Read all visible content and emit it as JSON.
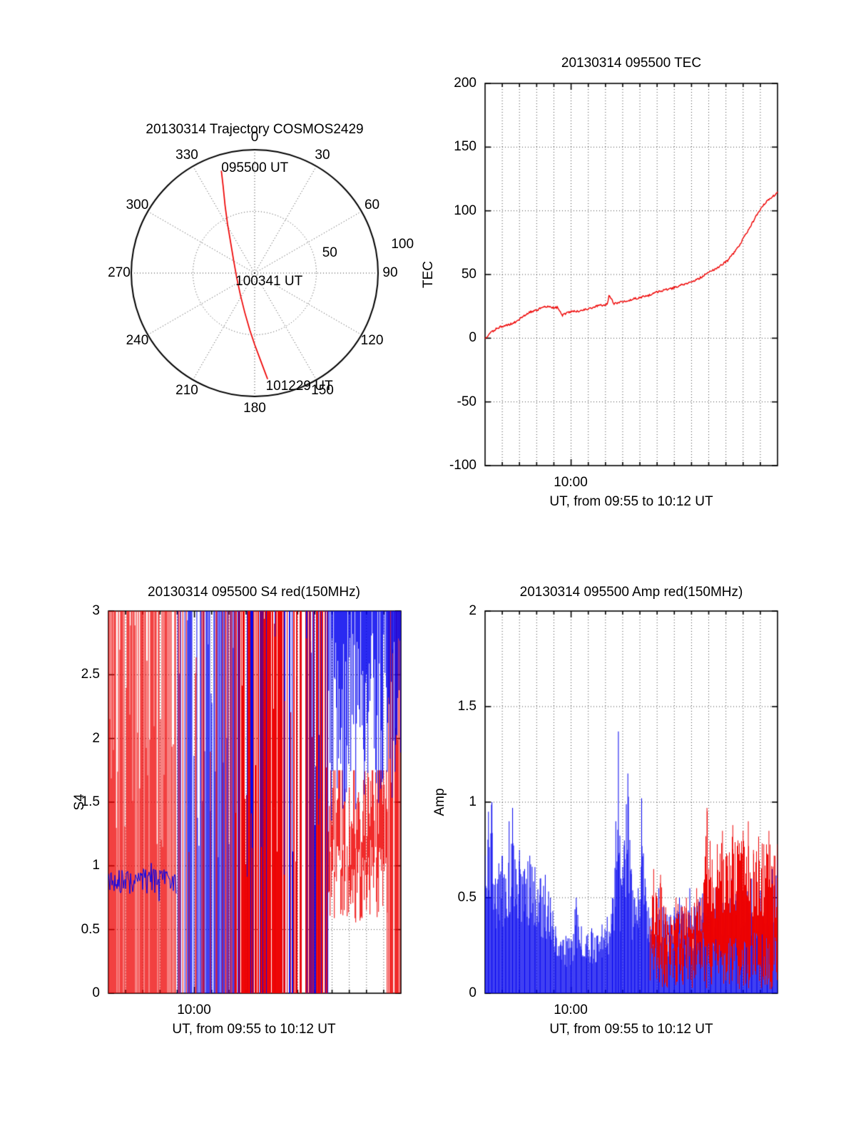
{
  "colors": {
    "red": "#ee0000",
    "blue": "#0000ee",
    "axis": "#000000"
  },
  "seed": 20130314,
  "chart_data": [
    {
      "type": "polar",
      "title": "20130314 Trajectory COSMOS2429",
      "azimuth_ticks": [
        "0",
        "30",
        "60",
        "90",
        "120",
        "150",
        "180",
        "210",
        "240",
        "270",
        "300",
        "330"
      ],
      "radial_tick_labels": [
        "50",
        "100"
      ],
      "annotations": [
        {
          "label": "095500 UT",
          "x": -0.27,
          "y": -0.85
        },
        {
          "label": "100341 UT",
          "x": -0.155,
          "y": 0.07
        },
        {
          "label": "101229 UT",
          "x": 0.09,
          "y": 0.92
        }
      ],
      "track_color": "red",
      "track_xy": [
        [
          -0.27,
          -0.83
        ],
        [
          -0.255,
          -0.7
        ],
        [
          -0.24,
          -0.55
        ],
        [
          -0.22,
          -0.4
        ],
        [
          -0.195,
          -0.25
        ],
        [
          -0.17,
          -0.1
        ],
        [
          -0.145,
          0.04
        ],
        [
          -0.115,
          0.18
        ],
        [
          -0.08,
          0.32
        ],
        [
          -0.04,
          0.46
        ],
        [
          0.0,
          0.58
        ],
        [
          0.045,
          0.7
        ],
        [
          0.09,
          0.82
        ],
        [
          0.105,
          0.86
        ]
      ]
    },
    {
      "type": "line",
      "title": "20130314 095500 TEC",
      "ylabel": "TEC",
      "xlabel": "UT, from 09:55 to 10:12 UT",
      "xtick_label": "10:00",
      "xtick_minute": 5,
      "xlim_minutes": [
        0,
        17
      ],
      "ylim": [
        -100,
        200
      ],
      "yticks": [
        -100,
        -50,
        0,
        50,
        100,
        150,
        200
      ],
      "series": {
        "name": "TEC",
        "color": "red",
        "points": [
          [
            0,
            0
          ],
          [
            0.3,
            4
          ],
          [
            0.6,
            7
          ],
          [
            0.9,
            9
          ],
          [
            1.2,
            10
          ],
          [
            1.5,
            11
          ],
          [
            1.8,
            13
          ],
          [
            2.1,
            16
          ],
          [
            2.4,
            19
          ],
          [
            2.7,
            21
          ],
          [
            3.0,
            22
          ],
          [
            3.3,
            24
          ],
          [
            3.6,
            25
          ],
          [
            3.9,
            24
          ],
          [
            4.2,
            24
          ],
          [
            4.5,
            18
          ],
          [
            4.8,
            20
          ],
          [
            5.1,
            21
          ],
          [
            5.4,
            21
          ],
          [
            5.7,
            22
          ],
          [
            6.0,
            23
          ],
          [
            6.3,
            24
          ],
          [
            6.6,
            26
          ],
          [
            6.9,
            26
          ],
          [
            7.1,
            27
          ],
          [
            7.2,
            33
          ],
          [
            7.35,
            31
          ],
          [
            7.5,
            27
          ],
          [
            7.8,
            28
          ],
          [
            8.1,
            29
          ],
          [
            8.4,
            30
          ],
          [
            8.7,
            31
          ],
          [
            9.0,
            32
          ],
          [
            9.3,
            33
          ],
          [
            9.6,
            34
          ],
          [
            9.9,
            36
          ],
          [
            10.2,
            37
          ],
          [
            10.5,
            38
          ],
          [
            10.8,
            39
          ],
          [
            11.1,
            40
          ],
          [
            11.4,
            42
          ],
          [
            11.7,
            43
          ],
          [
            12.0,
            44
          ],
          [
            12.3,
            46
          ],
          [
            12.6,
            48
          ],
          [
            12.9,
            51
          ],
          [
            13.2,
            53
          ],
          [
            13.5,
            55
          ],
          [
            13.8,
            58
          ],
          [
            14.1,
            61
          ],
          [
            14.4,
            66
          ],
          [
            14.7,
            71
          ],
          [
            15.0,
            78
          ],
          [
            15.3,
            85
          ],
          [
            15.6,
            92
          ],
          [
            15.9,
            99
          ],
          [
            16.2,
            105
          ],
          [
            16.5,
            109
          ],
          [
            16.8,
            112
          ],
          [
            17,
            115
          ]
        ]
      }
    },
    {
      "type": "scatter-noise",
      "title": "20130314 095500 S4 red(150MHz)",
      "ylabel": "S4",
      "xlabel": "UT, from 09:55 to 10:12 UT",
      "xtick_label": "10:00",
      "xtick_minute": 5,
      "xlim_minutes": [
        0,
        17
      ],
      "ylim": [
        0,
        3
      ],
      "yticks": [
        0,
        0.5,
        1,
        1.5,
        2,
        2.5,
        3
      ],
      "red_segments": [
        {
          "t0": 0,
          "t1": 3.95,
          "mode": "full",
          "density": 0.78
        },
        {
          "t0": 3.95,
          "t1": 4.6,
          "mode": "full",
          "density": 0.25
        },
        {
          "t0": 4.6,
          "t1": 7.4,
          "mode": "full",
          "density": 0.22
        },
        {
          "t0": 7.4,
          "t1": 10.1,
          "mode": "full",
          "density": 0.65
        },
        {
          "t0": 10.1,
          "t1": 12.8,
          "mode": "full",
          "density": 0.45
        },
        {
          "t0": 12.8,
          "t1": 16.2,
          "mode": "band",
          "lo": 0.55,
          "hi": 1.75,
          "density": 0.95
        },
        {
          "t0": 16.2,
          "t1": 17,
          "mode": "full",
          "density": 0.7
        }
      ],
      "blue_segments": [
        {
          "t0": 0,
          "t1": 3.95,
          "mode": "line",
          "center": 0.88,
          "jitter": 0.1
        },
        {
          "t0": 3.95,
          "t1": 4.6,
          "mode": "full",
          "density": 0.3
        },
        {
          "t0": 4.6,
          "t1": 7.4,
          "mode": "full",
          "density": 0.8
        },
        {
          "t0": 7.4,
          "t1": 10.1,
          "mode": "full",
          "density": 0.4
        },
        {
          "t0": 10.1,
          "t1": 12.8,
          "mode": "full",
          "density": 0.45
        },
        {
          "t0": 12.8,
          "t1": 17,
          "mode": "top",
          "lo": 1.35,
          "density": 0.85
        }
      ]
    },
    {
      "type": "scatter-noise",
      "title": "20130314 095500 Amp red(150MHz)",
      "ylabel": "Amp",
      "xlabel": "UT, from 09:55 to 10:12 UT",
      "xtick_label": "10:00",
      "xtick_minute": 5,
      "xlim_minutes": [
        0,
        17
      ],
      "ylim": [
        0,
        2
      ],
      "yticks": [
        0,
        0.5,
        1,
        1.5,
        2
      ],
      "blue_envelope": [
        [
          0,
          0.72
        ],
        [
          0.2,
          0.95
        ],
        [
          0.4,
          1.0
        ],
        [
          0.6,
          0.6
        ],
        [
          0.8,
          0.68
        ],
        [
          1.0,
          0.72
        ],
        [
          1.2,
          0.6
        ],
        [
          1.4,
          0.9
        ],
        [
          1.6,
          0.97
        ],
        [
          1.8,
          0.65
        ],
        [
          2.0,
          0.75
        ],
        [
          2.3,
          0.65
        ],
        [
          2.6,
          0.72
        ],
        [
          2.9,
          0.66
        ],
        [
          3.2,
          0.6
        ],
        [
          3.5,
          0.62
        ],
        [
          3.8,
          0.5
        ],
        [
          4.1,
          0.35
        ],
        [
          4.4,
          0.27
        ],
        [
          4.7,
          0.3
        ],
        [
          5.0,
          0.28
        ],
        [
          5.3,
          0.5
        ],
        [
          5.6,
          0.35
        ],
        [
          5.9,
          0.3
        ],
        [
          6.2,
          0.34
        ],
        [
          6.5,
          0.3
        ],
        [
          6.8,
          0.36
        ],
        [
          7.1,
          0.4
        ],
        [
          7.4,
          0.5
        ],
        [
          7.6,
          0.9
        ],
        [
          7.75,
          1.37
        ],
        [
          7.9,
          0.6
        ],
        [
          8.1,
          0.8
        ],
        [
          8.3,
          1.15
        ],
        [
          8.5,
          0.65
        ],
        [
          8.7,
          0.5
        ],
        [
          8.9,
          0.55
        ],
        [
          9.1,
          1.02
        ],
        [
          9.3,
          0.6
        ],
        [
          9.5,
          0.45
        ],
        [
          9.8,
          0.5
        ],
        [
          10.1,
          0.55
        ],
        [
          10.4,
          0.45
        ],
        [
          10.7,
          0.4
        ],
        [
          11.0,
          0.45
        ],
        [
          11.3,
          0.5
        ],
        [
          11.6,
          0.42
        ],
        [
          11.9,
          0.55
        ],
        [
          12.2,
          0.45
        ],
        [
          12.5,
          0.5
        ],
        [
          12.8,
          0.55
        ],
        [
          13.1,
          0.5
        ],
        [
          13.4,
          0.55
        ],
        [
          13.7,
          0.5
        ],
        [
          14.0,
          0.55
        ],
        [
          14.3,
          0.6
        ],
        [
          14.6,
          0.52
        ],
        [
          14.9,
          0.58
        ],
        [
          15.2,
          0.55
        ],
        [
          15.5,
          0.6
        ],
        [
          15.8,
          0.55
        ],
        [
          16.1,
          0.62
        ],
        [
          16.4,
          0.58
        ],
        [
          16.7,
          0.65
        ],
        [
          17,
          0.7
        ]
      ],
      "red_envelope": [
        [
          9.6,
          0.35
        ],
        [
          9.8,
          0.65
        ],
        [
          10.0,
          0.5
        ],
        [
          10.2,
          0.62
        ],
        [
          10.5,
          0.45
        ],
        [
          10.8,
          0.4
        ],
        [
          11.1,
          0.5
        ],
        [
          11.4,
          0.45
        ],
        [
          11.7,
          0.5
        ],
        [
          12.0,
          0.45
        ],
        [
          12.3,
          0.55
        ],
        [
          12.6,
          0.5
        ],
        [
          12.9,
          0.97
        ],
        [
          13.2,
          0.7
        ],
        [
          13.5,
          0.78
        ],
        [
          13.8,
          0.85
        ],
        [
          14.1,
          0.72
        ],
        [
          14.4,
          0.88
        ],
        [
          14.7,
          0.8
        ],
        [
          15.0,
          0.85
        ],
        [
          15.3,
          0.9
        ],
        [
          15.6,
          0.75
        ],
        [
          15.9,
          0.82
        ],
        [
          16.2,
          0.78
        ],
        [
          16.5,
          0.85
        ],
        [
          16.8,
          0.72
        ],
        [
          17,
          0.78
        ]
      ]
    }
  ]
}
